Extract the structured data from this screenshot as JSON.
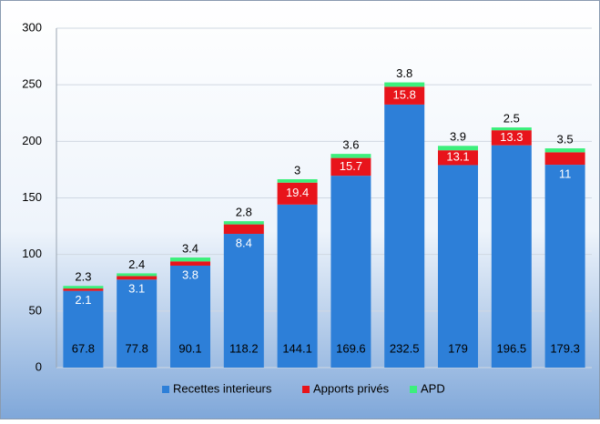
{
  "chart_data": {
    "type": "stacked_bar",
    "categories": [
      null,
      null,
      null,
      null,
      null,
      null,
      null,
      null,
      null,
      null
    ],
    "series": [
      {
        "name": "Recettes interieurs",
        "color": "#2d7fd8",
        "values": [
          67.8,
          77.8,
          90.1,
          118.2,
          144.1,
          169.6,
          232.5,
          179,
          196.5,
          179.3
        ]
      },
      {
        "name": "Apports privés",
        "color": "#e8141b",
        "values": [
          2.1,
          3.1,
          3.8,
          8.4,
          19.4,
          15.7,
          15.8,
          13.1,
          13.3,
          11
        ]
      },
      {
        "name": "APD",
        "color": "#3cef7c",
        "values": [
          2.3,
          2.4,
          3.4,
          2.8,
          3,
          3.6,
          3.8,
          3.9,
          2.5,
          3.5
        ]
      }
    ],
    "ylim": [
      0,
      300
    ],
    "yticks": [
      0,
      50,
      100,
      150,
      200,
      250,
      300
    ],
    "grid": true,
    "legend": "bottom"
  }
}
